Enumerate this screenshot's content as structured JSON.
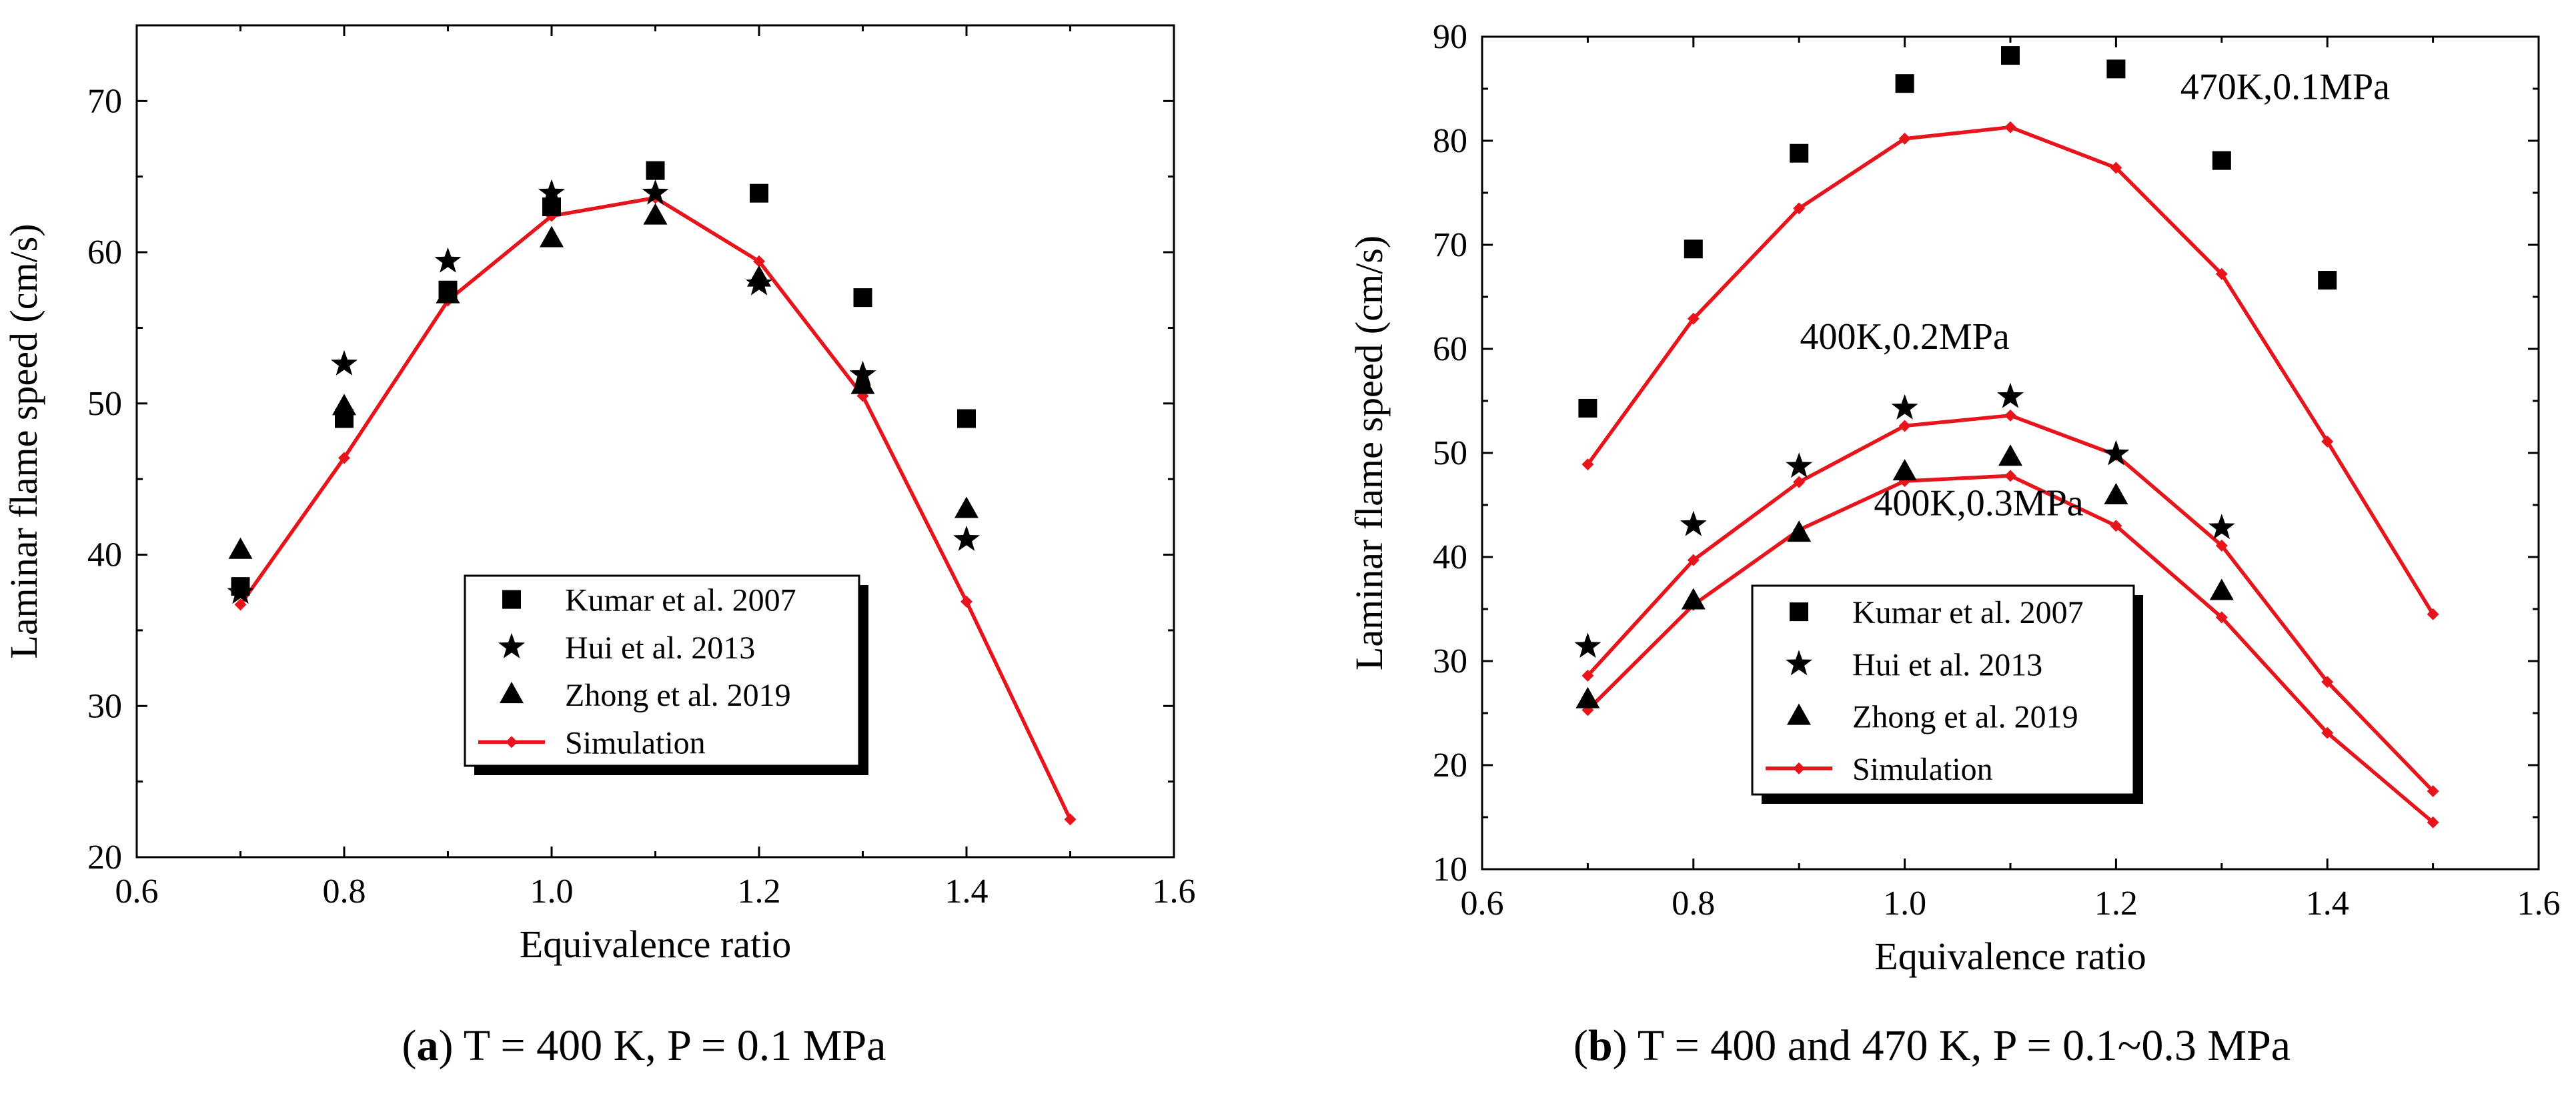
{
  "chart_data": [
    {
      "panel_label": "a",
      "type": "line",
      "caption": "T = 400 K, P = 0.1 MPa",
      "xlabel": "Equivalence ratio",
      "ylabel": "Laminar flame speed (cm/s)",
      "xlim": [
        0.6,
        1.6
      ],
      "ylim": [
        20,
        75
      ],
      "xticks": [
        0.6,
        0.8,
        1.0,
        1.2,
        1.4,
        1.6
      ],
      "xtick_labels": [
        "0.6",
        "0.8",
        "1.0",
        "1.2",
        "1.4",
        "1.6"
      ],
      "yticks": [
        20,
        30,
        40,
        50,
        60,
        70
      ],
      "ytick_labels": [
        "20",
        "30",
        "40",
        "50",
        "60",
        "70"
      ],
      "legend": {
        "placement": "lower-center-right",
        "entries": [
          {
            "label": "Kumar et al. 2007",
            "marker": "square"
          },
          {
            "label": "Hui et al. 2013",
            "marker": "star"
          },
          {
            "label": "Zhong et al. 2019",
            "marker": "triangle"
          },
          {
            "label": "Simulation",
            "marker": "line"
          }
        ]
      },
      "series": [
        {
          "name": "Kumar et al. 2007",
          "kind": "scatter",
          "marker": "square",
          "x": [
            0.7,
            0.8,
            0.9,
            1.0,
            1.1,
            1.2,
            1.3,
            1.4
          ],
          "y": [
            37.9,
            49.0,
            57.5,
            63.0,
            65.4,
            63.9,
            57.0,
            49.0
          ]
        },
        {
          "name": "Hui et al. 2013",
          "kind": "scatter",
          "marker": "star",
          "x": [
            0.7,
            0.8,
            0.9,
            1.0,
            1.1,
            1.2,
            1.3,
            1.4
          ],
          "y": [
            37.5,
            52.6,
            59.4,
            63.9,
            63.9,
            57.9,
            51.9,
            41.0
          ]
        },
        {
          "name": "Zhong et al. 2019",
          "kind": "scatter",
          "marker": "triangle",
          "x": [
            0.7,
            0.8,
            0.9,
            1.0,
            1.1,
            1.2,
            1.3,
            1.4
          ],
          "y": [
            40.3,
            49.8,
            57.2,
            60.9,
            62.4,
            58.3,
            51.2,
            43.0
          ]
        },
        {
          "name": "Simulation",
          "kind": "line",
          "color": "#e8141b",
          "x": [
            0.7,
            0.8,
            0.9,
            1.0,
            1.1,
            1.2,
            1.3,
            1.4,
            1.5
          ],
          "y": [
            36.7,
            46.4,
            56.8,
            62.4,
            63.6,
            59.4,
            50.5,
            36.9,
            22.5
          ]
        }
      ],
      "annotations": []
    },
    {
      "panel_label": "b",
      "type": "line",
      "caption": "T = 400 and 470 K, P = 0.1~0.3 MPa",
      "xlabel": "Equivalence ratio",
      "ylabel": "Laminar flame speed (cm/s)",
      "xlim": [
        0.6,
        1.6
      ],
      "ylim": [
        10,
        90
      ],
      "xticks": [
        0.6,
        0.8,
        1.0,
        1.2,
        1.4,
        1.6
      ],
      "xtick_labels": [
        "0.6",
        "0.8",
        "1.0",
        "1.2",
        "1.4",
        "1.6"
      ],
      "yticks": [
        10,
        20,
        30,
        40,
        50,
        60,
        70,
        80,
        90
      ],
      "ytick_labels": [
        "10",
        "20",
        "30",
        "40",
        "50",
        "60",
        "70",
        "80",
        "90"
      ],
      "legend": {
        "placement": "lower-left",
        "entries": [
          {
            "label": "Kumar et al. 2007",
            "marker": "square"
          },
          {
            "label": "Hui et al. 2013",
            "marker": "star"
          },
          {
            "label": "Zhong et al. 2019",
            "marker": "triangle"
          },
          {
            "label": "Simulation",
            "marker": "line"
          }
        ]
      },
      "series": [
        {
          "name": "Kumar et al. 2007",
          "kind": "scatter",
          "marker": "square",
          "x": [
            0.7,
            0.8,
            0.9,
            1.0,
            1.1,
            1.2,
            1.3,
            1.4
          ],
          "y": [
            54.3,
            69.6,
            78.8,
            85.5,
            88.2,
            86.9,
            78.1,
            66.6
          ]
        },
        {
          "name": "Hui et al. 2013",
          "kind": "scatter",
          "marker": "star",
          "x": [
            0.7,
            0.8,
            0.9,
            1.0,
            1.1,
            1.2,
            1.3
          ],
          "y": [
            31.4,
            43.1,
            48.7,
            54.3,
            55.4,
            49.9,
            42.8
          ]
        },
        {
          "name": "Zhong et al. 2019",
          "kind": "scatter",
          "marker": "triangle",
          "x": [
            0.7,
            0.8,
            0.9,
            1.0,
            1.1,
            1.2,
            1.3
          ],
          "y": [
            26.3,
            35.8,
            42.3,
            48.2,
            49.6,
            45.9,
            36.7
          ]
        },
        {
          "name": "Simulation (470K, 0.1MPa)",
          "kind": "line",
          "color": "#e8141b",
          "x": [
            0.7,
            0.8,
            0.9,
            1.0,
            1.1,
            1.2,
            1.3,
            1.4,
            1.5
          ],
          "y": [
            48.9,
            62.9,
            73.5,
            80.2,
            81.3,
            77.4,
            67.2,
            51.1,
            34.5
          ]
        },
        {
          "name": "Simulation (400K, 0.2MPa)",
          "kind": "line",
          "color": "#e8141b",
          "x": [
            0.7,
            0.8,
            0.9,
            1.0,
            1.1,
            1.2,
            1.3,
            1.4,
            1.5
          ],
          "y": [
            28.6,
            39.7,
            47.2,
            52.6,
            53.6,
            49.8,
            41.1,
            28.0,
            17.5
          ]
        },
        {
          "name": "Simulation (400K, 0.3MPa)",
          "kind": "line",
          "color": "#e8141b",
          "x": [
            0.7,
            0.8,
            0.9,
            1.0,
            1.1,
            1.2,
            1.3,
            1.4,
            1.5
          ],
          "y": [
            25.3,
            35.4,
            42.6,
            47.3,
            47.8,
            43.0,
            34.2,
            23.1,
            14.5
          ]
        }
      ],
      "annotations": [
        {
          "text": "470K,0.1MPa",
          "x": 1.36,
          "y": 84
        },
        {
          "text": "400K,0.2MPa",
          "x": 1.0,
          "y": 60
        },
        {
          "text": "400K,0.3MPa",
          "x": 1.07,
          "y": 44
        }
      ]
    }
  ]
}
